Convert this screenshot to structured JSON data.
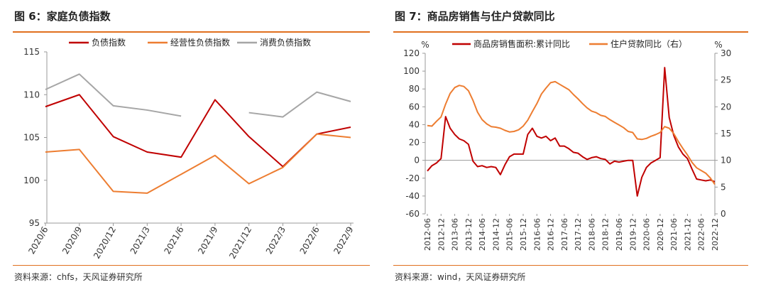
{
  "left_panel": {
    "title": "图 6：家庭负债指数",
    "source": "资料来源：chfs，天风证券研究所"
  },
  "right_panel": {
    "title": "图 7：商品房销售与住户贷款同比",
    "source": "资料来源：wind，天风证券研究所"
  },
  "colors": {
    "red": "#c00000",
    "orange": "#ed7d31",
    "gray": "#a6a6a6",
    "accent": "#e0701f"
  },
  "chart_data": [
    {
      "type": "line",
      "title": "",
      "categories": [
        "2020/6",
        "2020/9",
        "2020/12",
        "2021/3",
        "2021/6",
        "2021/9",
        "2021/12",
        "2022/3",
        "2022/6",
        "2022/9"
      ],
      "ylim": [
        95,
        115
      ],
      "yticks": [
        95,
        100,
        105,
        110,
        115
      ],
      "grid": false,
      "legend": "top",
      "series": [
        {
          "name": "负债指数",
          "color": "#c00000",
          "values": [
            108.6,
            110.0,
            105.1,
            103.3,
            102.7,
            109.4,
            105.1,
            101.6,
            105.4,
            106.2
          ]
        },
        {
          "name": "经营性负债指数",
          "color": "#ed7d31",
          "values": [
            103.3,
            103.6,
            98.7,
            98.5,
            100.7,
            102.9,
            99.6,
            101.5,
            105.4,
            105.0
          ]
        },
        {
          "name": "消费负债指数",
          "color": "#a6a6a6",
          "values": [
            110.6,
            112.4,
            108.7,
            108.2,
            107.5,
            null,
            107.9,
            107.4,
            110.3,
            109.2
          ]
        }
      ]
    },
    {
      "type": "line",
      "title": "",
      "xticks": [
        "2012-06",
        "2012-12",
        "2013-06",
        "2013-12",
        "2014-06",
        "2014-12",
        "2015-06",
        "2015-12",
        "2016-06",
        "2016-12",
        "2017-06",
        "2017-12",
        "2018-06",
        "2018-12",
        "2019-06",
        "2019-12",
        "2020-06",
        "2020-12",
        "2021-06",
        "2021-12",
        "2022-06",
        "2022-12"
      ],
      "ylabel_left": "%",
      "ylabel_right": "%",
      "ylim_left": [
        -60,
        120
      ],
      "ylim_right": [
        0,
        30
      ],
      "yticks_left": [
        -60,
        -40,
        -20,
        0,
        20,
        40,
        60,
        80,
        100,
        120
      ],
      "yticks_right": [
        0,
        5,
        10,
        15,
        20,
        25,
        30
      ],
      "grid": false,
      "legend": "top",
      "series": [
        {
          "name": "商品房销售面积:累计同比",
          "color": "#c00000",
          "axis": "left",
          "points": [
            [
              "2012-06",
              -12
            ],
            [
              "2012-08",
              -6
            ],
            [
              "2012-10",
              -3
            ],
            [
              "2012-12",
              2
            ],
            [
              "2013-02",
              49
            ],
            [
              "2013-04",
              36
            ],
            [
              "2013-06",
              29
            ],
            [
              "2013-08",
              24
            ],
            [
              "2013-10",
              22
            ],
            [
              "2013-12",
              18
            ],
            [
              "2014-02",
              -1
            ],
            [
              "2014-04",
              -7
            ],
            [
              "2014-06",
              -6
            ],
            [
              "2014-08",
              -8
            ],
            [
              "2014-10",
              -7
            ],
            [
              "2014-12",
              -8
            ],
            [
              "2015-02",
              -16
            ],
            [
              "2015-04",
              -5
            ],
            [
              "2015-06",
              4
            ],
            [
              "2015-08",
              7
            ],
            [
              "2015-10",
              7
            ],
            [
              "2015-12",
              7
            ],
            [
              "2016-02",
              29
            ],
            [
              "2016-04",
              36
            ],
            [
              "2016-06",
              27
            ],
            [
              "2016-08",
              25
            ],
            [
              "2016-10",
              27
            ],
            [
              "2016-12",
              22
            ],
            [
              "2017-02",
              25
            ],
            [
              "2017-04",
              16
            ],
            [
              "2017-06",
              16
            ],
            [
              "2017-08",
              13
            ],
            [
              "2017-10",
              9
            ],
            [
              "2017-12",
              8
            ],
            [
              "2018-02",
              4
            ],
            [
              "2018-04",
              1
            ],
            [
              "2018-06",
              3
            ],
            [
              "2018-08",
              4
            ],
            [
              "2018-10",
              2
            ],
            [
              "2018-12",
              1
            ],
            [
              "2019-02",
              -4
            ],
            [
              "2019-04",
              -1
            ],
            [
              "2019-06",
              -2
            ],
            [
              "2019-08",
              -1
            ],
            [
              "2019-10",
              0
            ],
            [
              "2019-12",
              0
            ],
            [
              "2020-02",
              -40
            ],
            [
              "2020-04",
              -19
            ],
            [
              "2020-06",
              -8
            ],
            [
              "2020-08",
              -3
            ],
            [
              "2020-10",
              0
            ],
            [
              "2020-12",
              3
            ],
            [
              "2021-02",
              104
            ],
            [
              "2021-04",
              48
            ],
            [
              "2021-06",
              28
            ],
            [
              "2021-08",
              15
            ],
            [
              "2021-10",
              7
            ],
            [
              "2021-12",
              2
            ],
            [
              "2022-02",
              -10
            ],
            [
              "2022-04",
              -21
            ],
            [
              "2022-06",
              -22
            ],
            [
              "2022-08",
              -23
            ],
            [
              "2022-10",
              -22
            ],
            [
              "2022-12",
              -24
            ]
          ]
        },
        {
          "name": "住户贷款同比（右）",
          "color": "#ed7d31",
          "axis": "right",
          "points": [
            [
              "2012-06",
              16.5
            ],
            [
              "2012-08",
              16.4
            ],
            [
              "2012-10",
              17.3
            ],
            [
              "2012-12",
              18.1
            ],
            [
              "2013-02",
              20.5
            ],
            [
              "2013-04",
              22.5
            ],
            [
              "2013-06",
              23.6
            ],
            [
              "2013-08",
              24.0
            ],
            [
              "2013-10",
              23.8
            ],
            [
              "2013-12",
              23.0
            ],
            [
              "2014-02",
              21.2
            ],
            [
              "2014-04",
              19.0
            ],
            [
              "2014-06",
              17.6
            ],
            [
              "2014-08",
              16.8
            ],
            [
              "2014-10",
              16.3
            ],
            [
              "2014-12",
              16.2
            ],
            [
              "2015-02",
              16.0
            ],
            [
              "2015-04",
              15.6
            ],
            [
              "2015-06",
              15.3
            ],
            [
              "2015-08",
              15.4
            ],
            [
              "2015-10",
              15.7
            ],
            [
              "2015-12",
              16.4
            ],
            [
              "2016-02",
              17.5
            ],
            [
              "2016-04",
              19.1
            ],
            [
              "2016-06",
              20.6
            ],
            [
              "2016-08",
              22.4
            ],
            [
              "2016-10",
              23.5
            ],
            [
              "2016-12",
              24.5
            ],
            [
              "2017-02",
              24.7
            ],
            [
              "2017-04",
              24.2
            ],
            [
              "2017-06",
              23.7
            ],
            [
              "2017-08",
              23.2
            ],
            [
              "2017-10",
              22.3
            ],
            [
              "2017-12",
              21.5
            ],
            [
              "2018-02",
              20.6
            ],
            [
              "2018-04",
              19.8
            ],
            [
              "2018-06",
              19.2
            ],
            [
              "2018-08",
              18.9
            ],
            [
              "2018-10",
              18.4
            ],
            [
              "2018-12",
              18.2
            ],
            [
              "2019-02",
              17.6
            ],
            [
              "2019-04",
              17.1
            ],
            [
              "2019-06",
              16.6
            ],
            [
              "2019-08",
              16.1
            ],
            [
              "2019-10",
              15.4
            ],
            [
              "2019-12",
              15.2
            ],
            [
              "2020-02",
              14.0
            ],
            [
              "2020-04",
              13.9
            ],
            [
              "2020-06",
              14.1
            ],
            [
              "2020-08",
              14.5
            ],
            [
              "2020-10",
              14.8
            ],
            [
              "2020-12",
              15.2
            ],
            [
              "2021-02",
              16.3
            ],
            [
              "2021-04",
              16.0
            ],
            [
              "2021-06",
              15.0
            ],
            [
              "2021-08",
              13.5
            ],
            [
              "2021-10",
              12.2
            ],
            [
              "2021-12",
              11.0
            ],
            [
              "2022-02",
              9.6
            ],
            [
              "2022-04",
              8.6
            ],
            [
              "2022-06",
              8.1
            ],
            [
              "2022-08",
              7.6
            ],
            [
              "2022-10",
              6.7
            ],
            [
              "2022-12",
              5.5
            ]
          ]
        }
      ]
    }
  ]
}
